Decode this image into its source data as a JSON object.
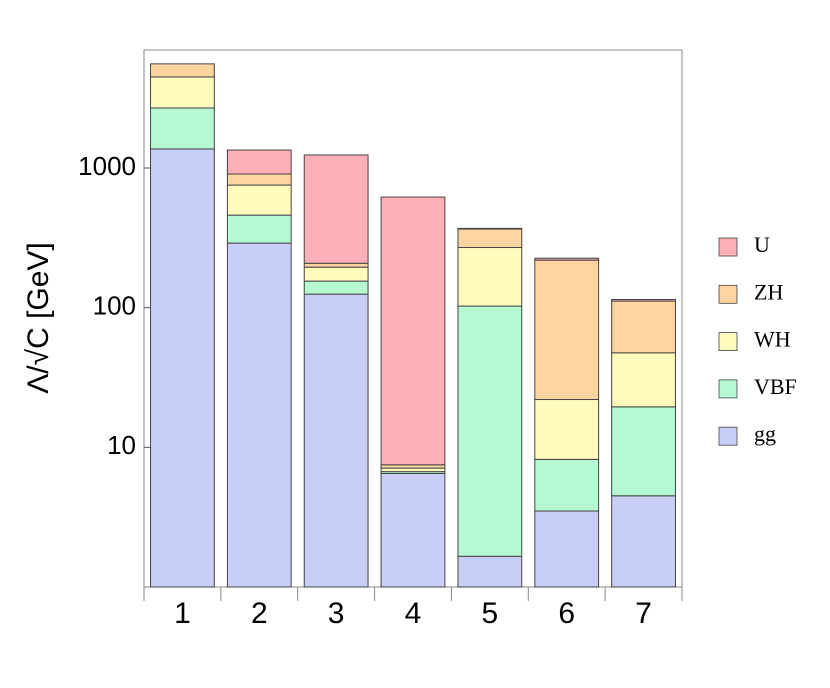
{
  "chart_data": {
    "type": "stacked_bar",
    "y_label": "Λ/√C [GeV]",
    "log_scale": true,
    "categories": [
      "1",
      "2",
      "3",
      "4",
      "5",
      "6",
      "7"
    ],
    "series": [
      {
        "name": "gg",
        "color": "#c8cef5",
        "values": [
          1370,
          290,
          125,
          6.5,
          1.66,
          3.5,
          4.5
        ]
      },
      {
        "name": "VBF",
        "color": "#b5f8d2",
        "values": [
          1320,
          170,
          30,
          0.2,
          101,
          4.7,
          15
        ]
      },
      {
        "name": "WH",
        "color": "#fffbbc",
        "values": [
          1800,
          295,
          40,
          0.4,
          167,
          13.8,
          28
        ]
      },
      {
        "name": "ZH",
        "color": "#fed4a0",
        "values": [
          1080,
          151,
          13,
          0.4,
          96,
          197,
          64
        ]
      },
      {
        "name": "U",
        "color": "#feb0b8",
        "values": [
          0,
          439,
          1032,
          612,
          4,
          7,
          3
        ]
      }
    ],
    "ylim": [
      1,
      7000
    ],
    "yticks": [
      10,
      100,
      1000
    ],
    "legend": "right"
  }
}
